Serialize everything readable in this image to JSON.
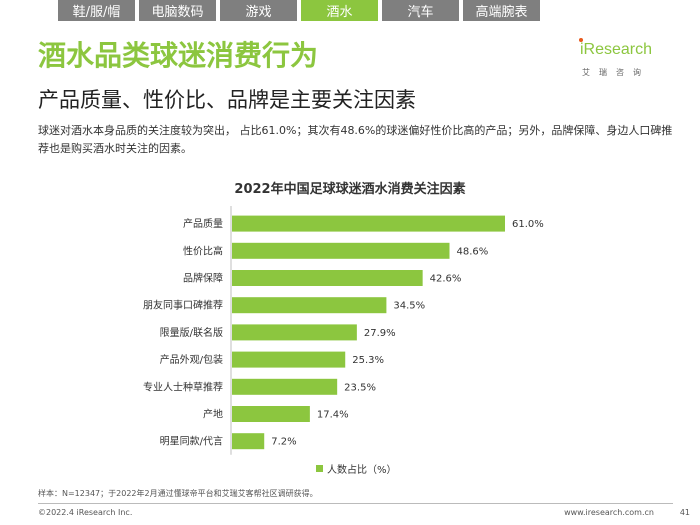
{
  "tabs": [
    "鞋/服/帽",
    "电脑数码",
    "游戏",
    "酒水",
    "汽车",
    "高端腕表"
  ],
  "active_tab": 3,
  "header": {
    "title": "酒水品类球迷消费行为",
    "subtitle": "产品质量、性价比、品牌是主要关注因素"
  },
  "logo": {
    "name": "iResearch",
    "cn": "艾瑞咨询"
  },
  "description": "球迷对酒水本身品质的关注度较为突出， 占比61.0%；其次有48.6%的球迷偏好性价比高的产品；另外，品牌保障、身边人口碑推荐也是购买酒水时关注的因素。",
  "colors": {
    "accent": "#8cc63f",
    "tab_inactive": "#7f7f7f"
  },
  "chart_data": {
    "type": "bar",
    "orientation": "horizontal",
    "title": "2022年中国足球球迷酒水消费关注因素",
    "categories": [
      "产品质量",
      "性价比高",
      "品牌保障",
      "朋友同事口碑推荐",
      "限量版/联名版",
      "产品外观/包装",
      "专业人士种草推荐",
      "产地",
      "明星同款/代言"
    ],
    "series": [
      {
        "name": "人数占比（%）",
        "values": [
          61.0,
          48.6,
          42.6,
          34.5,
          27.9,
          25.3,
          23.5,
          17.4,
          7.2
        ]
      }
    ],
    "value_labels": [
      "61.0%",
      "48.6%",
      "42.6%",
      "34.5%",
      "27.9%",
      "25.3%",
      "23.5%",
      "17.4%",
      "7.2%"
    ],
    "xlim": [
      0,
      61.0
    ],
    "legend_position": "bottom",
    "grid": false
  },
  "footer": {
    "source": "样本：N=12347；于2022年2月通过懂球帝平台和艾瑞艾客帮社区调研获得。",
    "copyright": "©2022.4 iResearch Inc.",
    "website": "www.iresearch.com.cn",
    "page": "41"
  }
}
